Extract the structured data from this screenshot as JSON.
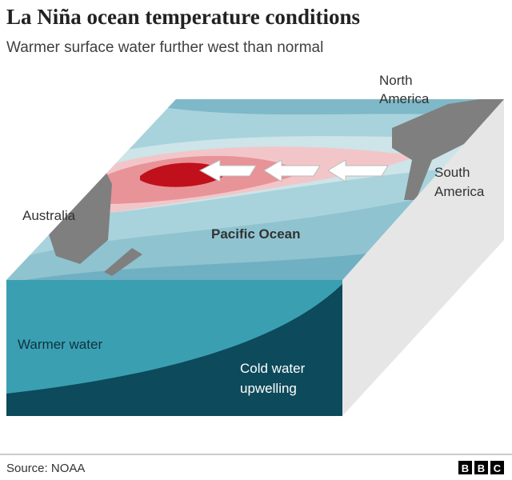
{
  "header": {
    "title": "La Niña ocean temperature conditions",
    "subtitle": "Warmer surface water further west than normal"
  },
  "labels": {
    "north_america": [
      "North",
      "America"
    ],
    "south_america": [
      "South",
      "America"
    ],
    "australia": "Australia",
    "pacific": "Pacific Ocean",
    "warmer_water": "Warmer water",
    "cold_water": [
      "Cold water",
      "upwelling"
    ]
  },
  "footer": {
    "source": "Source: NOAA",
    "logo": [
      "B",
      "B",
      "C"
    ]
  }
}
